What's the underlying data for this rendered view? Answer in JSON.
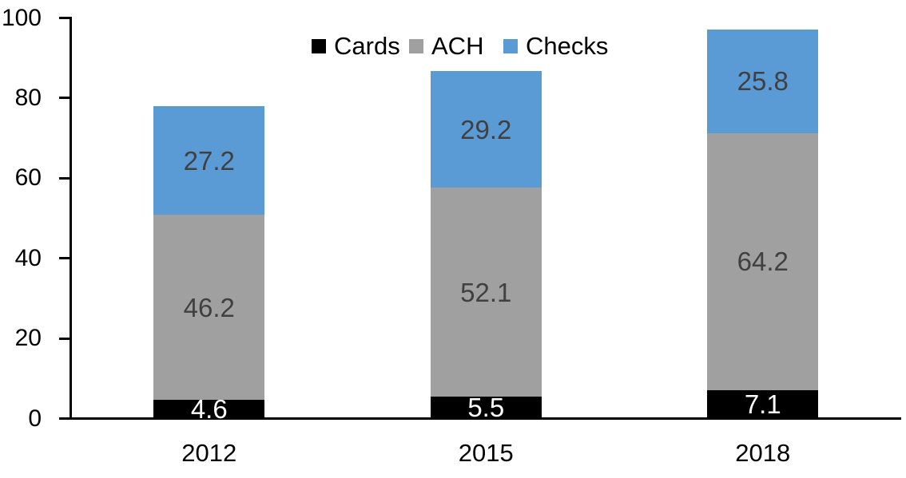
{
  "chart_data": {
    "type": "bar",
    "stacked": true,
    "title": "",
    "categories": [
      "2012",
      "2015",
      "2018"
    ],
    "series": [
      {
        "name": "Cards",
        "color": "#000000",
        "label_color": "#ffffff",
        "values": [
          4.6,
          5.5,
          7.1
        ]
      },
      {
        "name": "ACH",
        "color": "#a0a0a0",
        "label_color": "#404040",
        "values": [
          46.2,
          52.1,
          64.2
        ]
      },
      {
        "name": "Checks",
        "color": "#5b9bd5",
        "label_color": "#404040",
        "values": [
          27.2,
          29.2,
          25.8
        ]
      }
    ],
    "ylim": [
      0,
      100
    ],
    "yticks": [
      0,
      20,
      40,
      60,
      80,
      100
    ],
    "grid": false,
    "data_labels": true,
    "label_decimals": 1,
    "legend_position": "top",
    "axis_color": "#000000",
    "background_color": "#ffffff"
  }
}
